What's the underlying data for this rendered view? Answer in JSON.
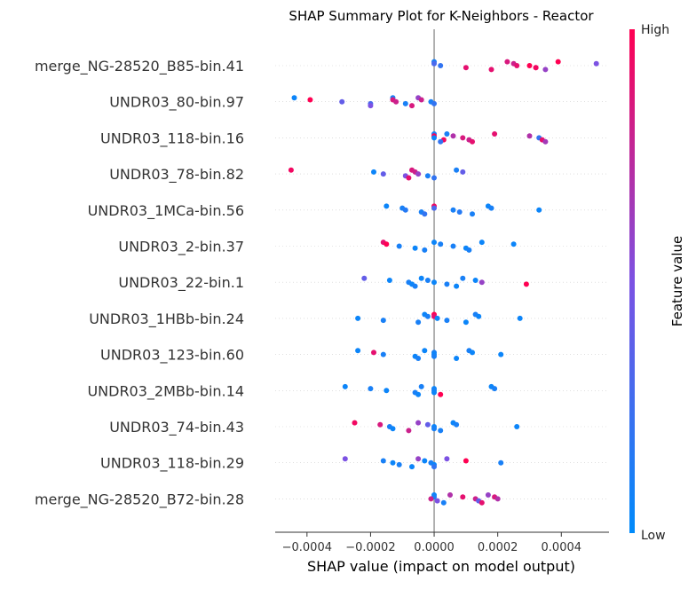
{
  "chart_data": {
    "type": "scatter",
    "title": "SHAP Summary Plot for K-Neighbors - Reactor",
    "xlabel": "SHAP value (impact on model output)",
    "ylabel": "",
    "xlim": [
      -0.0005,
      0.00055
    ],
    "xticks": [
      -0.0004,
      -0.0002,
      0.0,
      0.0002,
      0.0004
    ],
    "xtick_labels": [
      "−0.0004",
      "−0.0002",
      "0.0000",
      "0.0002",
      "0.0004"
    ],
    "grid": false,
    "colorbar": {
      "label": "Feature value",
      "high_label": "High",
      "low_label": "Low",
      "low_color": "#008bfb",
      "mid_color": "#7c52e3",
      "high_color": "#ff0052"
    },
    "features": [
      {
        "name": "merge_NG-28520_B85-bin.41",
        "points": [
          [
            0.0,
            0.1
          ],
          [
            0.0,
            0.3
          ],
          [
            2e-05,
            0.2
          ],
          [
            0.0001,
            0.9
          ],
          [
            0.00018,
            0.9
          ],
          [
            0.00023,
            0.85
          ],
          [
            0.00025,
            0.8
          ],
          [
            0.0003,
            1.0
          ],
          [
            0.00032,
            0.95
          ],
          [
            0.00035,
            0.6
          ],
          [
            0.00039,
            1.0
          ],
          [
            0.00051,
            0.5
          ],
          [
            0.00026,
            0.9
          ],
          [
            0.00032,
            0.95
          ]
        ]
      },
      {
        "name": "UNDR03_80-bin.97",
        "points": [
          [
            -0.00044,
            0.05
          ],
          [
            -0.00039,
            1.0
          ],
          [
            -0.00029,
            0.4
          ],
          [
            -0.0002,
            0.3
          ],
          [
            -0.0002,
            0.5
          ],
          [
            -0.00013,
            0.1
          ],
          [
            -0.00013,
            0.85
          ],
          [
            -0.00012,
            0.8
          ],
          [
            -9e-05,
            0.1
          ],
          [
            -7e-05,
            0.85
          ],
          [
            -5e-05,
            0.6
          ],
          [
            -4e-05,
            0.8
          ],
          [
            -1e-05,
            0.1
          ],
          [
            0.0,
            0.2
          ]
        ]
      },
      {
        "name": "UNDR03_118-bin.16",
        "points": [
          [
            0.0,
            0.1
          ],
          [
            0.0,
            1.0
          ],
          [
            0.0,
            0.05
          ],
          [
            3e-05,
            0.95
          ],
          [
            2e-05,
            0.2
          ],
          [
            4e-05,
            0.1
          ],
          [
            6e-05,
            0.7
          ],
          [
            9e-05,
            0.85
          ],
          [
            0.00011,
            0.8
          ],
          [
            0.00012,
            0.9
          ],
          [
            0.00019,
            0.9
          ],
          [
            0.0003,
            0.7
          ],
          [
            0.00033,
            0.2
          ],
          [
            0.00034,
            0.9
          ],
          [
            0.00035,
            0.65
          ]
        ]
      },
      {
        "name": "UNDR03_78-bin.82",
        "points": [
          [
            -0.00045,
            0.95
          ],
          [
            -0.00019,
            0.05
          ],
          [
            -0.00016,
            0.4
          ],
          [
            -9e-05,
            0.5
          ],
          [
            -8e-05,
            0.9
          ],
          [
            -7e-05,
            0.85
          ],
          [
            -6e-05,
            0.8
          ],
          [
            -5e-05,
            0.6
          ],
          [
            -2e-05,
            0.1
          ],
          [
            0.0,
            0.2
          ],
          [
            7e-05,
            0.1
          ],
          [
            9e-05,
            0.4
          ]
        ]
      },
      {
        "name": "UNDR03_1MCa-bin.56",
        "points": [
          [
            -0.00015,
            0.05
          ],
          [
            -0.0001,
            0.1
          ],
          [
            -9e-05,
            0.15
          ],
          [
            -4e-05,
            0.1
          ],
          [
            -3e-05,
            0.2
          ],
          [
            0.0,
            0.95
          ],
          [
            0.0,
            0.3
          ],
          [
            6e-05,
            0.1
          ],
          [
            8e-05,
            0.15
          ],
          [
            0.00012,
            0.1
          ],
          [
            0.00017,
            0.05
          ],
          [
            0.00018,
            0.1
          ],
          [
            0.00033,
            0.05
          ]
        ]
      },
      {
        "name": "UNDR03_2-bin.37",
        "points": [
          [
            -0.00016,
            0.9
          ],
          [
            -0.00015,
            1.0
          ],
          [
            -0.00011,
            0.1
          ],
          [
            -6e-05,
            0.05
          ],
          [
            -3e-05,
            0.1
          ],
          [
            0.0,
            0.05
          ],
          [
            2e-05,
            0.1
          ],
          [
            6e-05,
            0.1
          ],
          [
            0.0001,
            0.05
          ],
          [
            0.00011,
            0.1
          ],
          [
            0.00015,
            0.05
          ],
          [
            0.00025,
            0.05
          ]
        ]
      },
      {
        "name": "UNDR03_22-bin.1",
        "points": [
          [
            -0.00022,
            0.4
          ],
          [
            -0.00014,
            0.05
          ],
          [
            -8e-05,
            0.1
          ],
          [
            -7e-05,
            0.05
          ],
          [
            -6e-05,
            0.1
          ],
          [
            -4e-05,
            0.05
          ],
          [
            -2e-05,
            0.1
          ],
          [
            0.0,
            0.05
          ],
          [
            4e-05,
            0.1
          ],
          [
            7e-05,
            0.05
          ],
          [
            9e-05,
            0.1
          ],
          [
            0.00013,
            0.05
          ],
          [
            0.00015,
            0.6
          ],
          [
            0.00029,
            1.0
          ]
        ]
      },
      {
        "name": "UNDR03_1HBb-bin.24",
        "points": [
          [
            0.0,
            1.0
          ],
          [
            0.0,
            0.9
          ],
          [
            -0.00024,
            0.05
          ],
          [
            -0.00016,
            0.1
          ],
          [
            -5e-05,
            0.1
          ],
          [
            -3e-05,
            0.05
          ],
          [
            -2e-05,
            0.1
          ],
          [
            1e-05,
            0.05
          ],
          [
            4e-05,
            0.1
          ],
          [
            0.0001,
            0.05
          ],
          [
            0.00013,
            0.1
          ],
          [
            0.00014,
            0.05
          ],
          [
            0.00027,
            0.05
          ]
        ]
      },
      {
        "name": "UNDR03_123-bin.60",
        "points": [
          [
            -0.00024,
            0.05
          ],
          [
            -0.00019,
            0.9
          ],
          [
            -0.00016,
            0.1
          ],
          [
            -6e-05,
            0.05
          ],
          [
            -5e-05,
            0.1
          ],
          [
            -3e-05,
            0.05
          ],
          [
            0.0,
            0.1
          ],
          [
            0.0,
            0.05
          ],
          [
            0.0,
            0.1
          ],
          [
            7e-05,
            0.05
          ],
          [
            0.00011,
            0.1
          ],
          [
            0.00012,
            0.05
          ],
          [
            0.00021,
            0.05
          ]
        ]
      },
      {
        "name": "UNDR03_2MBb-bin.14",
        "points": [
          [
            -0.00028,
            0.05
          ],
          [
            -0.0002,
            0.1
          ],
          [
            -0.00015,
            0.05
          ],
          [
            -6e-05,
            0.1
          ],
          [
            -5e-05,
            0.05
          ],
          [
            -4e-05,
            0.1
          ],
          [
            0.0,
            0.05
          ],
          [
            0.0,
            0.1
          ],
          [
            0.0,
            0.05
          ],
          [
            2e-05,
            1.0
          ],
          [
            0.00018,
            0.05
          ],
          [
            0.00019,
            0.1
          ]
        ]
      },
      {
        "name": "UNDR03_74-bin.43",
        "points": [
          [
            -0.00025,
            0.95
          ],
          [
            -0.00017,
            0.85
          ],
          [
            -0.00014,
            0.1
          ],
          [
            -0.00013,
            0.05
          ],
          [
            -8e-05,
            0.8
          ],
          [
            -5e-05,
            0.6
          ],
          [
            -2e-05,
            0.4
          ],
          [
            0.0,
            0.05
          ],
          [
            0.0,
            0.1
          ],
          [
            2e-05,
            0.1
          ],
          [
            6e-05,
            0.05
          ],
          [
            7e-05,
            0.1
          ],
          [
            0.00026,
            0.05
          ]
        ]
      },
      {
        "name": "UNDR03_118-bin.29",
        "points": [
          [
            -0.00028,
            0.5
          ],
          [
            -0.00016,
            0.1
          ],
          [
            -0.00013,
            0.05
          ],
          [
            -0.00011,
            0.1
          ],
          [
            -7e-05,
            0.05
          ],
          [
            -5e-05,
            0.6
          ],
          [
            -3e-05,
            0.05
          ],
          [
            -1e-05,
            0.1
          ],
          [
            0.0,
            0.05
          ],
          [
            0.0,
            0.2
          ],
          [
            4e-05,
            0.5
          ],
          [
            0.0001,
            1.0
          ],
          [
            0.00021,
            0.1
          ]
        ]
      },
      {
        "name": "merge_NG-28520_B72-bin.28",
        "points": [
          [
            0.0,
            0.05
          ],
          [
            0.0,
            0.1
          ],
          [
            -1e-05,
            0.8
          ],
          [
            1e-05,
            0.5
          ],
          [
            3e-05,
            0.1
          ],
          [
            5e-05,
            0.7
          ],
          [
            9e-05,
            0.9
          ],
          [
            0.00013,
            0.8
          ],
          [
            0.00014,
            0.4
          ],
          [
            0.00015,
            0.9
          ],
          [
            0.00017,
            0.6
          ],
          [
            0.00019,
            0.85
          ],
          [
            0.0002,
            0.7
          ]
        ]
      }
    ]
  }
}
